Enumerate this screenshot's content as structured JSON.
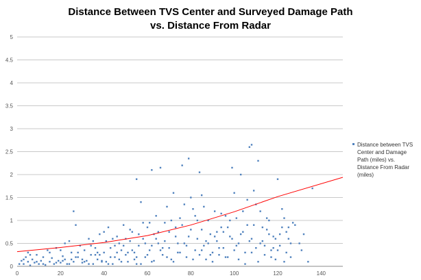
{
  "chart_data": {
    "type": "scatter",
    "title_lines": [
      "Distance Between TVS Center and Surveyed Damage Path",
      "vs. Distance From Radar"
    ],
    "xlabel": "",
    "ylabel": "",
    "xlim": [
      0,
      150
    ],
    "ylim": [
      0,
      5
    ],
    "x_ticks": [
      0,
      20,
      40,
      60,
      80,
      100,
      120,
      140
    ],
    "y_ticks": [
      0,
      0.5,
      1,
      1.5,
      2,
      2.5,
      3,
      3.5,
      4,
      4.5,
      5
    ],
    "x_tick_labels": [
      "0",
      "20",
      "40",
      "60",
      "80",
      "100",
      "120",
      "140"
    ],
    "y_tick_labels": [
      "0",
      "0.5",
      "1",
      "1.5",
      "2",
      "2.5",
      "3",
      "3.5",
      "4",
      "4.5",
      "5"
    ],
    "grid": "horizontal",
    "legend_position": "right",
    "legend_lines": [
      "Distance between TVS",
      "Center and Damage",
      "Path (miles) vs.",
      "Distance From Radar",
      "(miles)"
    ],
    "series": [
      {
        "name": "Distance between TVS Center and Damage Path (miles) vs. Distance From Radar (miles)",
        "color": "#4f81bd",
        "points": [
          [
            2,
            0.12
          ],
          [
            3,
            0.05
          ],
          [
            4,
            0.2
          ],
          [
            5,
            0.3
          ],
          [
            5,
            0.1
          ],
          [
            6,
            0.02
          ],
          [
            7,
            0.15
          ],
          [
            8,
            0.08
          ],
          [
            9,
            0.25
          ],
          [
            10,
            0.05
          ],
          [
            11,
            0.12
          ],
          [
            12,
            0.2
          ],
          [
            13,
            0.03
          ],
          [
            14,
            0.35
          ],
          [
            15,
            0.1
          ],
          [
            16,
            0.18
          ],
          [
            17,
            0.05
          ],
          [
            18,
            0.4
          ],
          [
            19,
            0.12
          ],
          [
            20,
            0.08
          ],
          [
            21,
            0.22
          ],
          [
            22,
            0.15
          ],
          [
            23,
            0.05
          ],
          [
            24,
            0.55
          ],
          [
            25,
            0.3
          ],
          [
            26,
            1.2
          ],
          [
            26,
            0.1
          ],
          [
            27,
            0.9
          ],
          [
            28,
            0.2
          ],
          [
            29,
            0.45
          ],
          [
            30,
            0.08
          ],
          [
            31,
            0.35
          ],
          [
            32,
            0.12
          ],
          [
            33,
            0.6
          ],
          [
            34,
            0.25
          ],
          [
            35,
            0.05
          ],
          [
            36,
            0.4
          ],
          [
            37,
            0.15
          ],
          [
            38,
            0.7
          ],
          [
            39,
            0.1
          ],
          [
            40,
            0.3
          ],
          [
            41,
            0.55
          ],
          [
            42,
            0.85
          ],
          [
            43,
            0.2
          ],
          [
            44,
            0.05
          ],
          [
            45,
            0.45
          ],
          [
            46,
            0.65
          ],
          [
            47,
            0.15
          ],
          [
            48,
            0.35
          ],
          [
            49,
            0.9
          ],
          [
            50,
            0.25
          ],
          [
            51,
            0.1
          ],
          [
            52,
            0.55
          ],
          [
            53,
            0.75
          ],
          [
            54,
            0.3
          ],
          [
            55,
            1.9
          ],
          [
            55,
            0.05
          ],
          [
            56,
            0.45
          ],
          [
            57,
            1.4
          ],
          [
            58,
            0.6
          ],
          [
            59,
            0.2
          ],
          [
            60,
            0.85
          ],
          [
            61,
            0.35
          ],
          [
            62,
            2.1
          ],
          [
            62,
            0.1
          ],
          [
            63,
            0.7
          ],
          [
            64,
            1.1
          ],
          [
            65,
            0.5
          ],
          [
            66,
            2.15
          ],
          [
            67,
            0.25
          ],
          [
            68,
            0.95
          ],
          [
            69,
            1.3
          ],
          [
            70,
            0.4
          ],
          [
            71,
            0.15
          ],
          [
            72,
            1.6
          ],
          [
            73,
            0.65
          ],
          [
            74,
            0.3
          ],
          [
            75,
            1.05
          ],
          [
            76,
            2.2
          ],
          [
            77,
            0.5
          ],
          [
            78,
            0.2
          ],
          [
            79,
            2.35
          ],
          [
            80,
            0.8
          ],
          [
            81,
            1.25
          ],
          [
            82,
            0.35
          ],
          [
            83,
            0.6
          ],
          [
            84,
            2.05
          ],
          [
            85,
            1.55
          ],
          [
            86,
            0.45
          ],
          [
            87,
            0.15
          ],
          [
            88,
            1.0
          ],
          [
            89,
            0.7
          ],
          [
            90,
            0.3
          ],
          [
            91,
            1.2
          ],
          [
            92,
            0.55
          ],
          [
            93,
            0.25
          ],
          [
            94,
            0.85
          ],
          [
            95,
            0.4
          ],
          [
            96,
            1.1
          ],
          [
            97,
            0.2
          ],
          [
            98,
            0.65
          ],
          [
            99,
            2.15
          ],
          [
            100,
            0.35
          ],
          [
            101,
            1.05
          ],
          [
            102,
            0.5
          ],
          [
            103,
            2.0
          ],
          [
            104,
            0.75
          ],
          [
            105,
            0.3
          ],
          [
            106,
            1.45
          ],
          [
            107,
            2.6
          ],
          [
            108,
            2.65
          ],
          [
            108,
            0.6
          ],
          [
            109,
            0.9
          ],
          [
            110,
            0.4
          ],
          [
            111,
            2.3
          ],
          [
            112,
            1.2
          ],
          [
            113,
            0.55
          ],
          [
            114,
            0.25
          ],
          [
            115,
            0.8
          ],
          [
            116,
            1.0
          ],
          [
            117,
            0.35
          ],
          [
            118,
            0.65
          ],
          [
            119,
            0.15
          ],
          [
            120,
            1.9
          ],
          [
            121,
            0.45
          ],
          [
            122,
            0.85
          ],
          [
            123,
            1.05
          ],
          [
            124,
            0.3
          ],
          [
            125,
            0.6
          ],
          [
            126,
            0.2
          ],
          [
            128,
            0.9
          ],
          [
            130,
            0.5
          ],
          [
            132,
            0.7
          ],
          [
            134,
            0.1
          ],
          [
            136,
            1.7
          ],
          [
            1,
            0.05
          ],
          [
            3,
            0.15
          ],
          [
            6,
            0.25
          ],
          [
            9,
            0.1
          ],
          [
            12,
            0.05
          ],
          [
            15,
            0.3
          ],
          [
            18,
            0.08
          ],
          [
            21,
            0.12
          ],
          [
            24,
            0.05
          ],
          [
            27,
            0.2
          ],
          [
            30,
            0.15
          ],
          [
            33,
            0.05
          ],
          [
            36,
            0.25
          ],
          [
            39,
            0.12
          ],
          [
            42,
            0.05
          ],
          [
            45,
            0.2
          ],
          [
            48,
            0.1
          ],
          [
            51,
            0.3
          ],
          [
            54,
            0.15
          ],
          [
            57,
            0.05
          ],
          [
            60,
            0.25
          ],
          [
            63,
            0.12
          ],
          [
            66,
            0.35
          ],
          [
            69,
            0.2
          ],
          [
            72,
            0.1
          ],
          [
            75,
            0.3
          ],
          [
            78,
            0.45
          ],
          [
            81,
            0.15
          ],
          [
            84,
            0.25
          ],
          [
            87,
            0.55
          ],
          [
            90,
            0.1
          ],
          [
            93,
            0.4
          ],
          [
            96,
            0.2
          ],
          [
            99,
            0.6
          ],
          [
            102,
            0.15
          ],
          [
            105,
            0.05
          ],
          [
            108,
            0.3
          ],
          [
            111,
            0.1
          ],
          [
            114,
            0.45
          ],
          [
            117,
            0.2
          ],
          [
            120,
            0.35
          ],
          [
            123,
            0.1
          ],
          [
            126,
            0.5
          ],
          [
            44,
            0.6
          ],
          [
            46,
            0.3
          ],
          [
            52,
            0.8
          ],
          [
            58,
            0.95
          ],
          [
            64,
            0.6
          ],
          [
            70,
            0.75
          ],
          [
            76,
            0.9
          ],
          [
            82,
            1.1
          ],
          [
            86,
            1.3
          ],
          [
            92,
            0.75
          ],
          [
            98,
            1.0
          ],
          [
            104,
            1.2
          ],
          [
            110,
            1.35
          ],
          [
            116,
            0.7
          ],
          [
            122,
            1.25
          ],
          [
            127,
            0.95
          ],
          [
            34,
            0.45
          ],
          [
            37,
            0.3
          ],
          [
            40,
            0.75
          ],
          [
            43,
            0.4
          ],
          [
            47,
            0.5
          ],
          [
            50,
            0.6
          ],
          [
            53,
            0.35
          ],
          [
            56,
            0.7
          ],
          [
            59,
            0.5
          ],
          [
            61,
            0.95
          ],
          [
            65,
            0.75
          ],
          [
            67,
            0.4
          ],
          [
            71,
            1.0
          ],
          [
            73,
            0.85
          ],
          [
            77,
            1.35
          ],
          [
            80,
            1.5
          ],
          [
            83,
            1.0
          ],
          [
            85,
            0.8
          ],
          [
            88,
            0.5
          ],
          [
            91,
            0.65
          ],
          [
            94,
            1.15
          ],
          [
            97,
            0.85
          ],
          [
            100,
            1.6
          ],
          [
            103,
            0.7
          ],
          [
            106,
            0.9
          ],
          [
            109,
            1.65
          ],
          [
            112,
            0.5
          ],
          [
            115,
            1.05
          ],
          [
            118,
            0.4
          ],
          [
            121,
            0.7
          ],
          [
            124,
            0.75
          ],
          [
            20,
            0.35
          ],
          [
            22,
            0.5
          ],
          [
            25,
            0.15
          ],
          [
            28,
            0.3
          ],
          [
            31,
            0.1
          ],
          [
            35,
            0.55
          ],
          [
            38,
            0.25
          ],
          [
            41,
            0.1
          ],
          [
            49,
            0.45
          ],
          [
            55,
            0.2
          ],
          [
            62,
            0.45
          ],
          [
            68,
            0.55
          ],
          [
            74,
            0.5
          ],
          [
            79,
            0.65
          ],
          [
            85,
            0.35
          ],
          [
            89,
            0.25
          ],
          [
            95,
            0.75
          ],
          [
            101,
            0.45
          ],
          [
            107,
            0.55
          ],
          [
            113,
            0.85
          ],
          [
            119,
            0.6
          ],
          [
            125,
            0.85
          ],
          [
            131,
            0.35
          ]
        ]
      }
    ],
    "trendline": {
      "type": "exponential",
      "color": "#ff0000",
      "points": [
        [
          0,
          0.32
        ],
        [
          20,
          0.41
        ],
        [
          40,
          0.52
        ],
        [
          60,
          0.67
        ],
        [
          80,
          0.9
        ],
        [
          100,
          1.19
        ],
        [
          120,
          1.52
        ],
        [
          150,
          1.94
        ]
      ]
    }
  }
}
